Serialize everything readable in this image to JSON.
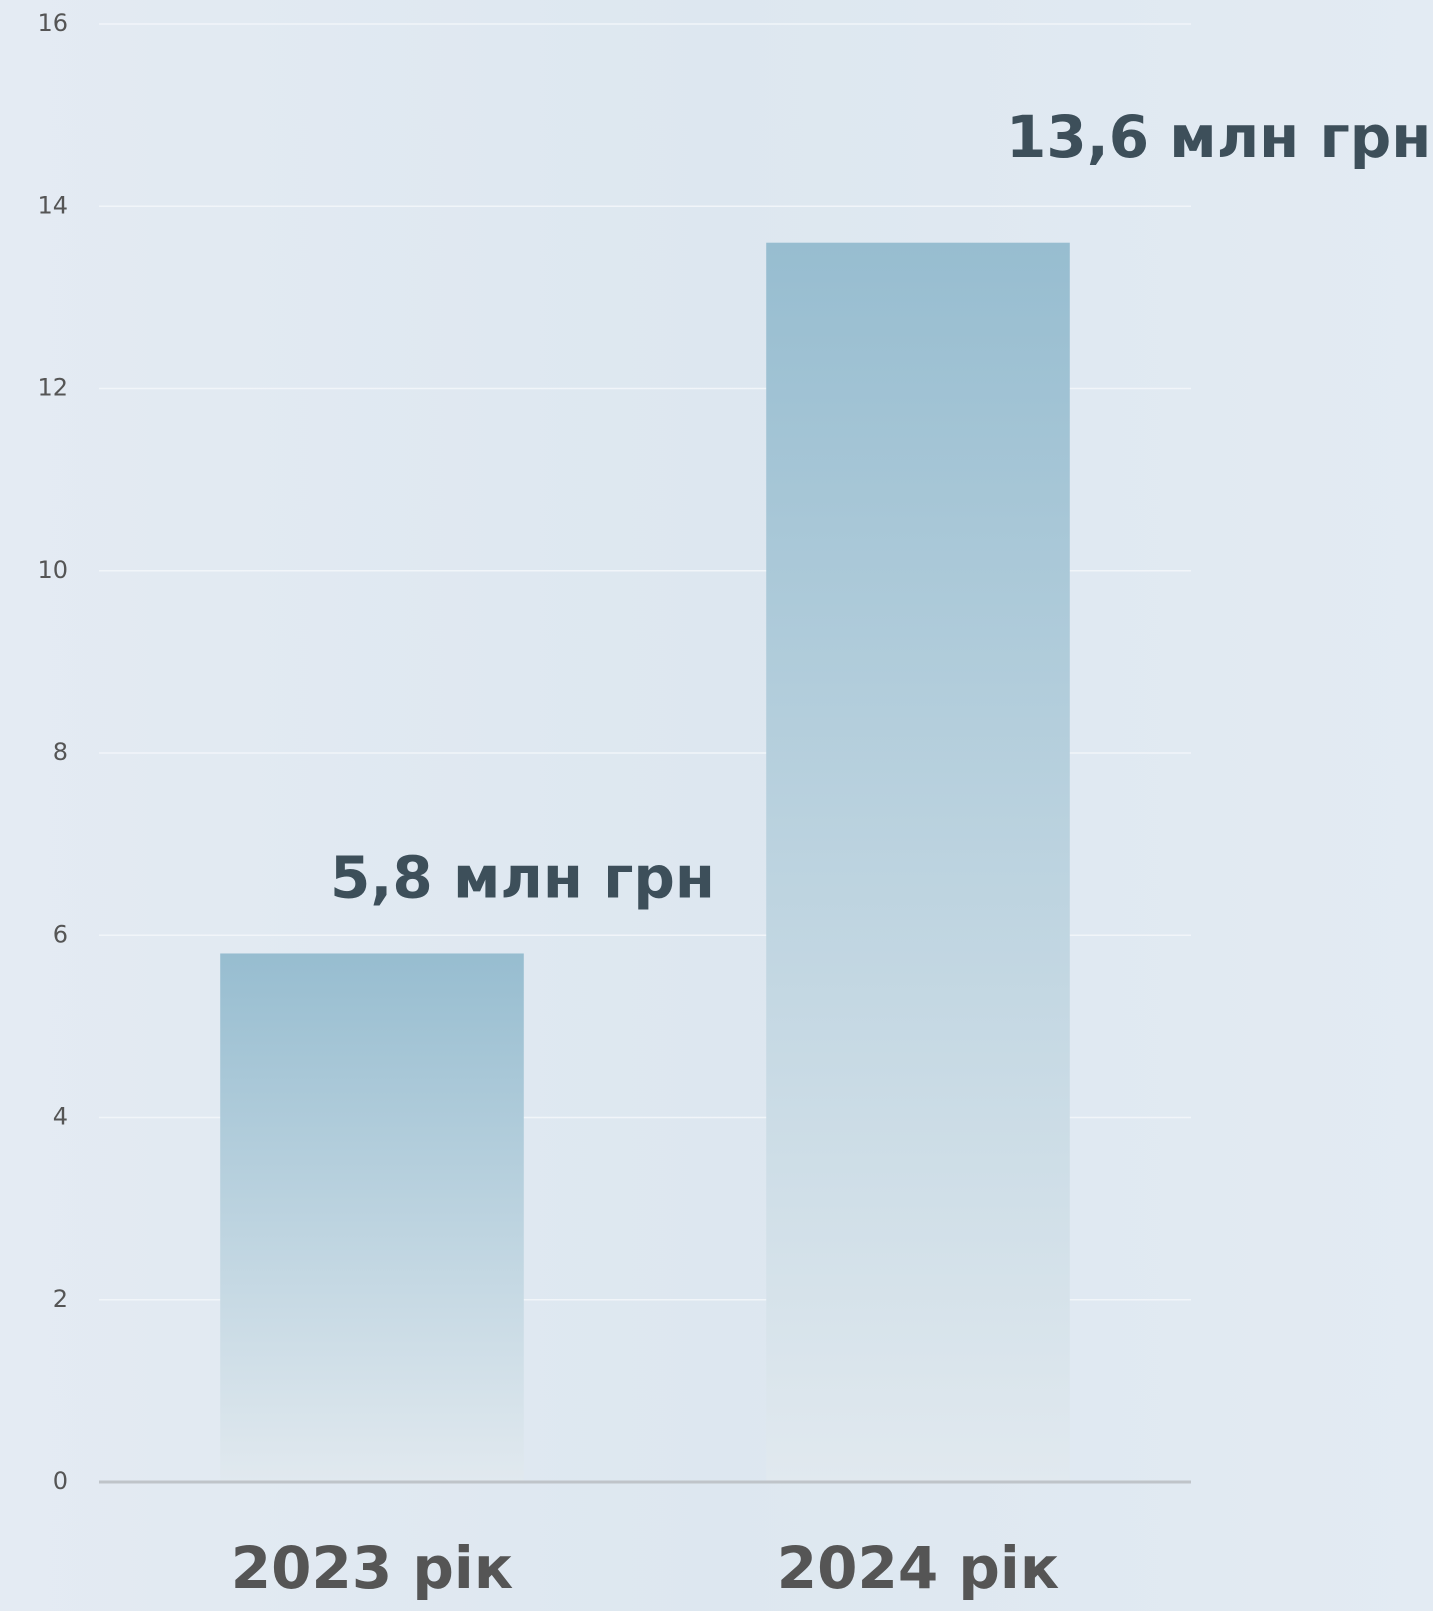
{
  "chart_data": {
    "type": "bar",
    "categories": [
      "2023 рік",
      "2024 рік"
    ],
    "values": [
      5.8,
      13.6
    ],
    "value_labels": [
      "5,8 млн грн",
      "13,6 млн грн"
    ],
    "color": "#97bdd0",
    "ylim": [
      0,
      16
    ],
    "yticks": [
      0,
      2,
      4,
      6,
      8,
      10,
      12,
      14,
      16
    ],
    "grid": true
  }
}
